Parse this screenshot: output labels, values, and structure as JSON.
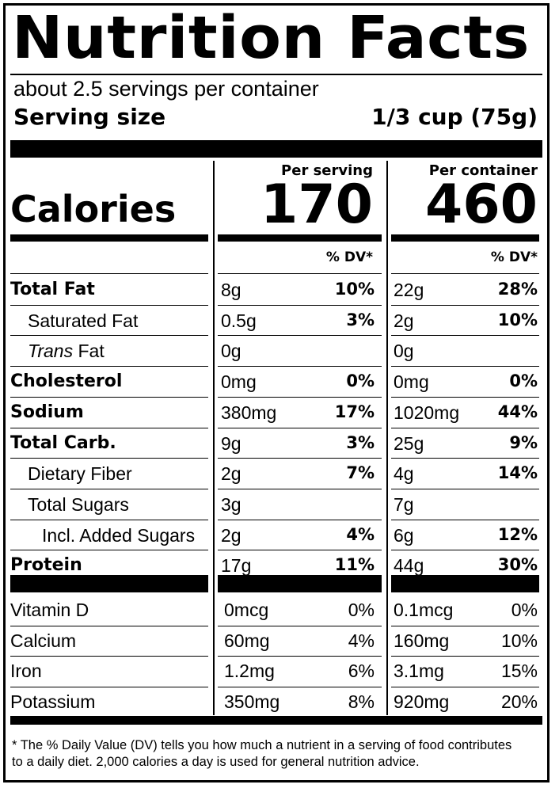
{
  "title": "Nutrition Facts",
  "servings_per_container": "about 2.5 servings per container",
  "serving_size_label": "Serving size",
  "serving_size_value": "1/3 cup (75g)",
  "columns": {
    "per_serving": "Per serving",
    "per_container": "Per container",
    "dv_header": "% DV*"
  },
  "calories": {
    "label": "Calories",
    "per_serving": "170",
    "per_container": "460"
  },
  "nutrients": [
    {
      "label": "Total Fat",
      "bold": true,
      "indent": 0,
      "serv_amt": "8g",
      "serv_dv": "10%",
      "cont_amt": "22g",
      "cont_dv": "28%"
    },
    {
      "label": "Saturated Fat",
      "bold": false,
      "indent": 1,
      "serv_amt": "0.5g",
      "serv_dv": "3%",
      "cont_amt": "2g",
      "cont_dv": "10%"
    },
    {
      "label_italic": "Trans",
      "label": " Fat",
      "bold": false,
      "indent": 1,
      "serv_amt": "0g",
      "serv_dv": "",
      "cont_amt": "0g",
      "cont_dv": ""
    },
    {
      "label": "Cholesterol",
      "bold": true,
      "indent": 0,
      "serv_amt": "0mg",
      "serv_dv": "0%",
      "cont_amt": "0mg",
      "cont_dv": "0%"
    },
    {
      "label": "Sodium",
      "bold": true,
      "indent": 0,
      "serv_amt": "380mg",
      "serv_dv": "17%",
      "cont_amt": "1020mg",
      "cont_dv": "44%"
    },
    {
      "label": "Total Carb.",
      "bold": true,
      "indent": 0,
      "serv_amt": "9g",
      "serv_dv": "3%",
      "cont_amt": "25g",
      "cont_dv": "9%"
    },
    {
      "label": "Dietary Fiber",
      "bold": false,
      "indent": 1,
      "serv_amt": "2g",
      "serv_dv": "7%",
      "cont_amt": "4g",
      "cont_dv": "14%"
    },
    {
      "label": "Total Sugars",
      "bold": false,
      "indent": 1,
      "serv_amt": "3g",
      "serv_dv": "",
      "cont_amt": "7g",
      "cont_dv": ""
    },
    {
      "label": "Incl. Added Sugars",
      "bold": false,
      "indent": 2,
      "serv_amt": "2g",
      "serv_dv": "4%",
      "cont_amt": "6g",
      "cont_dv": "12%"
    },
    {
      "label": "Protein",
      "bold": true,
      "indent": 0,
      "serv_amt": "17g",
      "serv_dv": "11%",
      "cont_amt": "44g",
      "cont_dv": "30%"
    }
  ],
  "vitamins": [
    {
      "label": "Vitamin D",
      "serv_amt": "0mcg",
      "serv_dv": "0%",
      "cont_amt": "0.1mcg",
      "cont_dv": "0%"
    },
    {
      "label": "Calcium",
      "serv_amt": "60mg",
      "serv_dv": "4%",
      "cont_amt": "160mg",
      "cont_dv": "10%"
    },
    {
      "label": "Iron",
      "serv_amt": "1.2mg",
      "serv_dv": "6%",
      "cont_amt": "3.1mg",
      "cont_dv": "15%"
    },
    {
      "label": "Potassium",
      "serv_amt": "350mg",
      "serv_dv": "8%",
      "cont_amt": "920mg",
      "cont_dv": "20%"
    }
  ],
  "footnote": "* The % Daily Value (DV) tells you how much a nutrient in a serving of food contributes to a daily diet. 2,000 calories a day is used for general nutrition advice."
}
